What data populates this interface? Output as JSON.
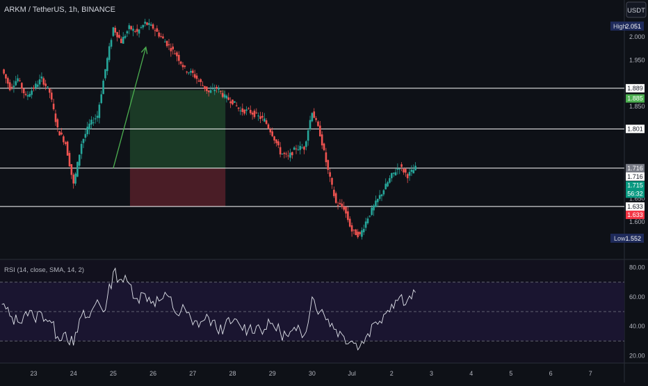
{
  "header": {
    "symbol_title": "ARKM / TetherUS, 1h, BINANCE",
    "currency_button": "USDT"
  },
  "price_pane": {
    "ylim": [
      1.52,
      2.08
    ],
    "y_ticks": [
      "2.000",
      "1.950",
      "1.850",
      "1.650",
      "1.600"
    ],
    "high": {
      "label": "High",
      "value": "2.051"
    },
    "low": {
      "label": "Low",
      "value": "1.552"
    },
    "horizontal_lines": [
      1.889,
      1.801,
      1.716,
      1.633
    ],
    "price_tags": [
      {
        "value": "1.889",
        "price": 1.889,
        "bg": "#ffffff",
        "fg": "#131722"
      },
      {
        "value": "1.885",
        "price": 1.885,
        "bg": "#4caf50",
        "fg": "#ffffff"
      },
      {
        "value": "1.801",
        "price": 1.801,
        "bg": "#ffffff",
        "fg": "#131722"
      },
      {
        "value": "1.716",
        "price": 1.716,
        "bg": "#787b86",
        "fg": "#ffffff"
      },
      {
        "value": "1.716",
        "price": 1.716,
        "bg": "#ffffff",
        "fg": "#131722"
      },
      {
        "value": "1.715",
        "price": 1.715,
        "bg": "#089981",
        "fg": "#ffffff"
      },
      {
        "value": "1.633",
        "price": 1.633,
        "bg": "#ffffff",
        "fg": "#131722"
      },
      {
        "value": "1.633",
        "price": 1.633,
        "bg": "#f23645",
        "fg": "#ffffff"
      }
    ],
    "countdown": "56:32",
    "position": {
      "entry": 1.716,
      "target": 1.885,
      "stop": 1.633,
      "start_x": 2.42,
      "end_x": 4.82,
      "profit_color": "#1b3a26",
      "loss_color": "#4a1d26"
    },
    "projection_arrow": {
      "from": {
        "x": 2.0,
        "price": 1.716
      },
      "to": {
        "x": 2.82,
        "price": 1.978
      },
      "color": "#4caf50"
    }
  },
  "rsi_pane": {
    "label": "RSI (14, close, SMA, 14, 2)",
    "ylim": [
      15,
      85
    ],
    "y_ticks": [
      "80.00",
      "60.00",
      "40.00",
      "20.00"
    ],
    "bands": {
      "upper": 70,
      "middle": 50,
      "lower": 30
    }
  },
  "x_axis": {
    "ticks": [
      {
        "label": "23",
        "x": 0
      },
      {
        "label": "24",
        "x": 1
      },
      {
        "label": "25",
        "x": 2
      },
      {
        "label": "26",
        "x": 3
      },
      {
        "label": "27",
        "x": 4
      },
      {
        "label": "28",
        "x": 5
      },
      {
        "label": "29",
        "x": 6
      },
      {
        "label": "30",
        "x": 7
      },
      {
        "label": "Jul",
        "x": 8
      },
      {
        "label": "2",
        "x": 9
      },
      {
        "label": "3",
        "x": 10
      },
      {
        "label": "4",
        "x": 11
      },
      {
        "label": "5",
        "x": 12
      },
      {
        "label": "6",
        "x": 13
      },
      {
        "label": "7",
        "x": 14
      }
    ]
  },
  "chart_data": {
    "type": "line",
    "series": [
      {
        "x": [
          -0.8,
          -0.6,
          -0.4,
          -0.2,
          0,
          0.2,
          0.4,
          0.6,
          0.8,
          1,
          1.2,
          1.4,
          1.6,
          1.8,
          2,
          2.2,
          2.4,
          2.6,
          2.8,
          3,
          3.2,
          3.4,
          3.6,
          3.8,
          4,
          4.2,
          4.4,
          4.6,
          4.8,
          5,
          5.2,
          5.4,
          5.6,
          5.8,
          6,
          6.2,
          6.4,
          6.6,
          6.8,
          7,
          7.2,
          7.4,
          7.6,
          7.8,
          8,
          8.2,
          8.4,
          8.6,
          8.8,
          9,
          9.2,
          9.4,
          9.6
        ],
        "values": [
          1.93,
          1.89,
          1.91,
          1.87,
          1.89,
          1.91,
          1.88,
          1.8,
          1.77,
          1.68,
          1.77,
          1.81,
          1.83,
          1.93,
          2.02,
          1.99,
          2.02,
          2.01,
          2.03,
          2.02,
          2.0,
          1.98,
          1.96,
          1.93,
          1.92,
          1.9,
          1.88,
          1.89,
          1.87,
          1.86,
          1.84,
          1.84,
          1.83,
          1.82,
          1.79,
          1.75,
          1.74,
          1.76,
          1.76,
          1.84,
          1.79,
          1.71,
          1.64,
          1.63,
          1.58,
          1.57,
          1.61,
          1.64,
          1.67,
          1.7,
          1.72,
          1.7,
          1.716
        ]
      }
    ],
    "rsi": {
      "x": [
        -0.8,
        -0.6,
        -0.4,
        -0.2,
        0,
        0.2,
        0.4,
        0.6,
        0.8,
        1,
        1.2,
        1.4,
        1.6,
        1.8,
        2,
        2.2,
        2.4,
        2.6,
        2.8,
        3,
        3.2,
        3.4,
        3.6,
        3.8,
        4,
        4.2,
        4.4,
        4.6,
        4.8,
        5,
        5.2,
        5.4,
        5.6,
        5.8,
        6,
        6.2,
        6.4,
        6.6,
        6.8,
        7,
        7.2,
        7.4,
        7.6,
        7.8,
        8,
        8.2,
        8.4,
        8.6,
        8.8,
        9,
        9.2,
        9.4,
        9.6
      ],
      "values": [
        55,
        47,
        43,
        50,
        46,
        49,
        44,
        33,
        36,
        27,
        47,
        46,
        58,
        51,
        77,
        72,
        69,
        59,
        62,
        57,
        58,
        60,
        48,
        52,
        41,
        43,
        46,
        38,
        40,
        43,
        40,
        38,
        40,
        38,
        42,
        36,
        33,
        37,
        34,
        60,
        50,
        45,
        38,
        33,
        30,
        26,
        35,
        43,
        48,
        55,
        60,
        58,
        63
      ]
    },
    "xlabel": "",
    "ylabel": ""
  }
}
